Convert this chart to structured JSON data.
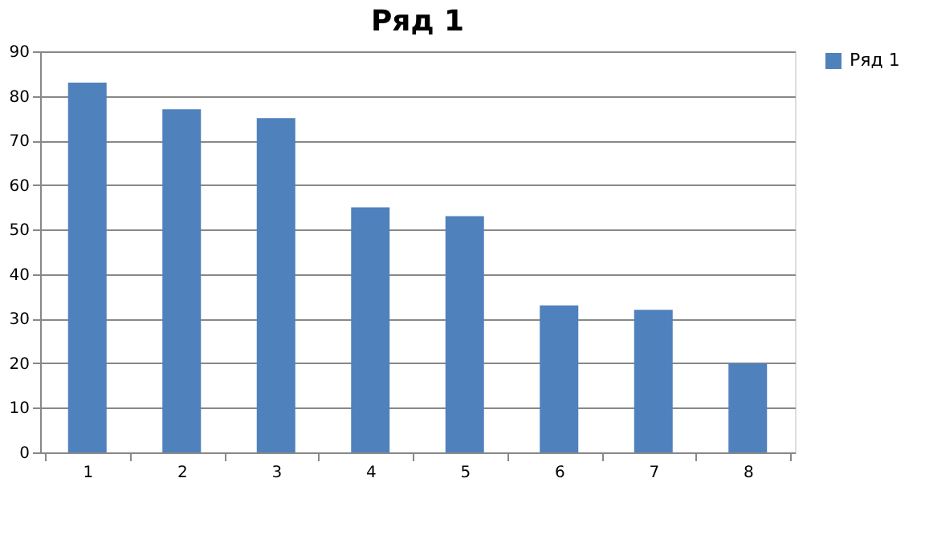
{
  "chart_data": {
    "type": "bar",
    "title": "Ряд 1",
    "categories": [
      "1",
      "2",
      "3",
      "4",
      "5",
      "6",
      "7",
      "8"
    ],
    "series": [
      {
        "name": "Ряд 1",
        "color": "#4f81bd",
        "values": [
          83,
          77,
          75,
          55,
          53,
          33,
          32,
          20
        ]
      }
    ],
    "ylim": [
      0,
      90
    ],
    "yticks": [
      0,
      10,
      20,
      30,
      40,
      50,
      60,
      70,
      80,
      90
    ],
    "grid": "y",
    "legend": "right"
  }
}
